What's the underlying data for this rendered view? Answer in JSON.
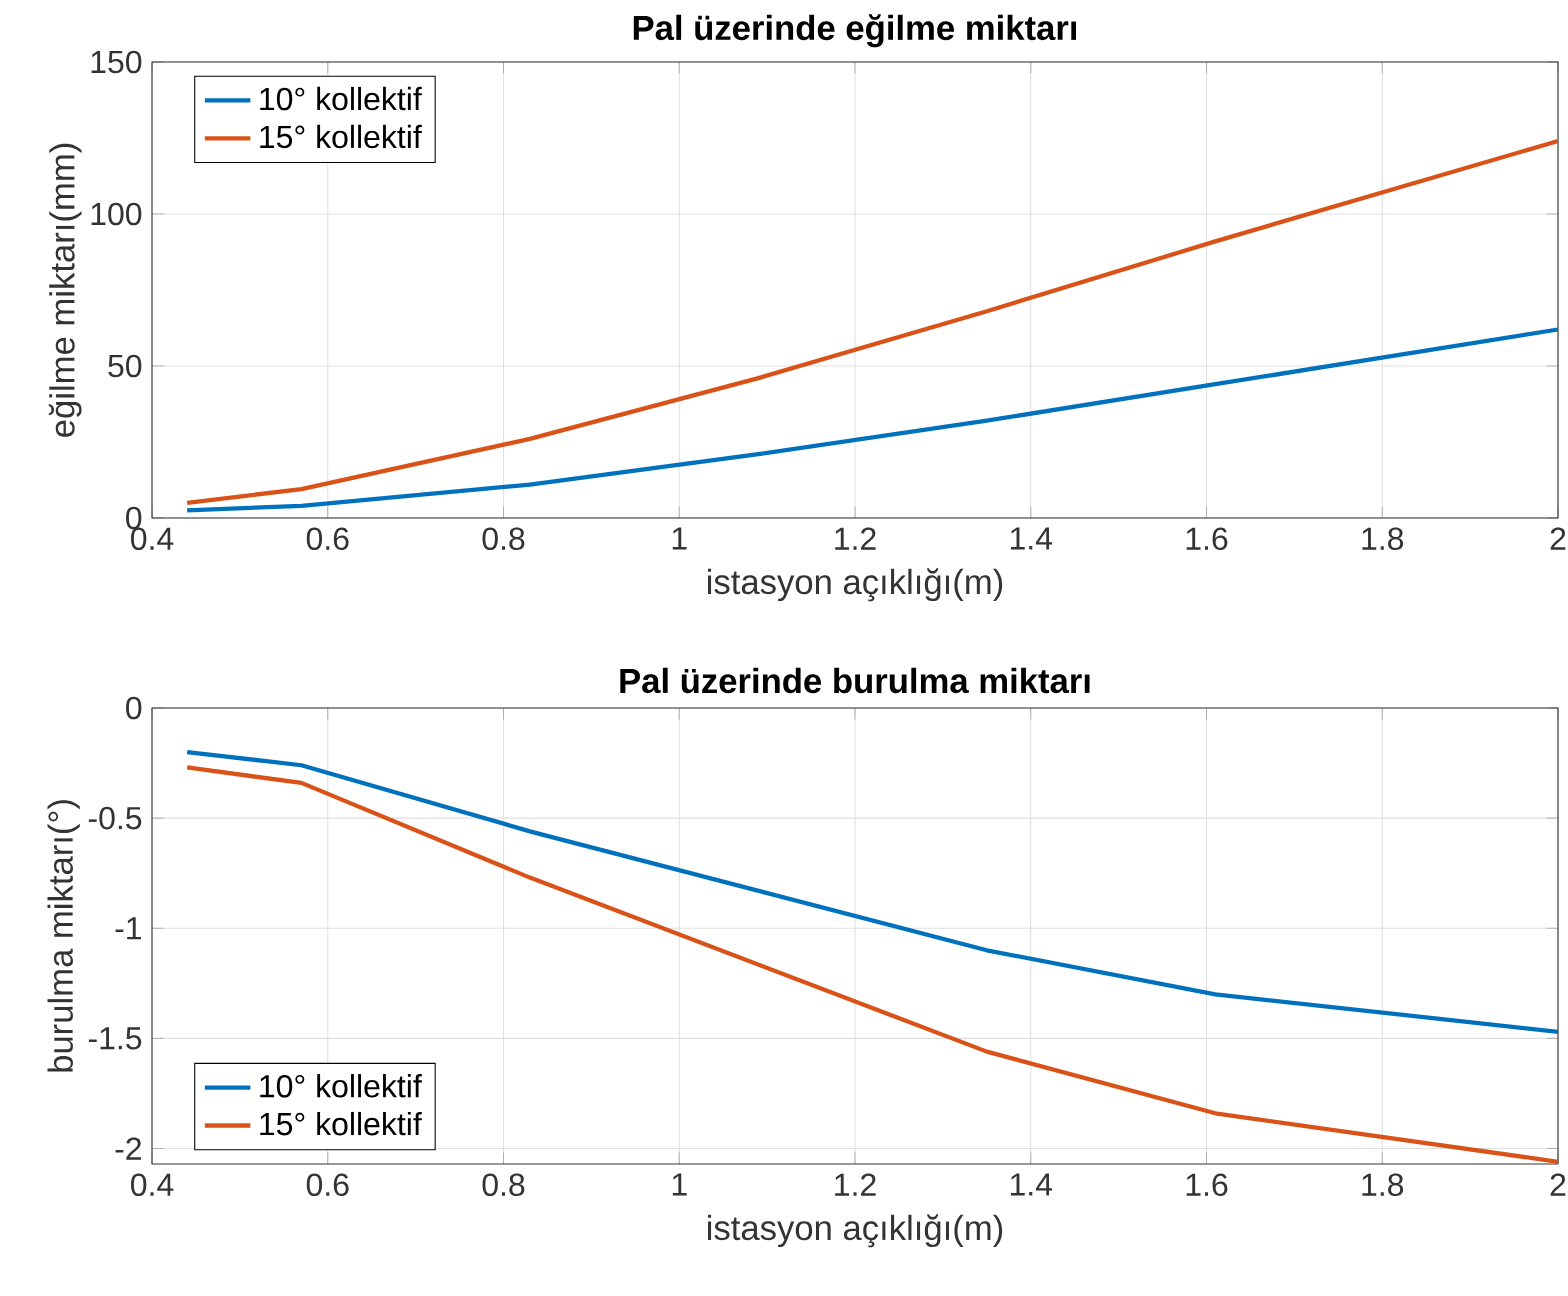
{
  "chart_data": [
    {
      "type": "line",
      "title": "Pal üzerinde eğilme miktarı",
      "xlabel": "istasyon açıklığı(m)",
      "ylabel": "eğilme miktarı(mm)",
      "x": [
        0.44,
        0.57,
        0.83,
        1.09,
        1.35,
        1.61,
        2.0
      ],
      "series": [
        {
          "name": "10° kollektif",
          "color": "#0072bd",
          "values": [
            2.5,
            4,
            11,
            21,
            32,
            44,
            62
          ]
        },
        {
          "name": "15° kollektif",
          "color": "#d95319",
          "values": [
            5,
            9.5,
            26,
            46,
            68,
            91,
            124
          ]
        }
      ],
      "xlim": [
        0.4,
        2
      ],
      "ylim": [
        0,
        150
      ],
      "xticks": [
        0.4,
        0.6,
        0.8,
        1,
        1.2,
        1.4,
        1.6,
        1.8,
        2
      ],
      "yticks": [
        0,
        50,
        100,
        150
      ],
      "grid": true,
      "legend": "top left",
      "marker": "none",
      "line_style": "solid"
    },
    {
      "type": "line",
      "title": "Pal üzerinde burulma miktarı",
      "xlabel": "istasyon açıklığı(m)",
      "ylabel": "burulma miktarı(°)",
      "x": [
        0.44,
        0.57,
        0.83,
        1.35,
        1.61,
        2.0
      ],
      "series": [
        {
          "name": "10° kollektif",
          "color": "#0072bd",
          "values": [
            -0.2,
            -0.26,
            -0.56,
            -1.1,
            -1.3,
            -1.47
          ]
        },
        {
          "name": "15° kollektif",
          "color": "#d95319",
          "values": [
            -0.27,
            -0.34,
            -0.77,
            -1.56,
            -1.84,
            -2.06
          ]
        }
      ],
      "xlim": [
        0.4,
        2
      ],
      "ylim": [
        -2.07,
        0
      ],
      "xticks": [
        0.4,
        0.6,
        0.8,
        1,
        1.2,
        1.4,
        1.6,
        1.8,
        2
      ],
      "yticks": [
        -2,
        -1.5,
        -1,
        -0.5,
        0
      ],
      "grid": true,
      "legend": "bottom left",
      "marker": "none",
      "line_style": "solid"
    }
  ]
}
